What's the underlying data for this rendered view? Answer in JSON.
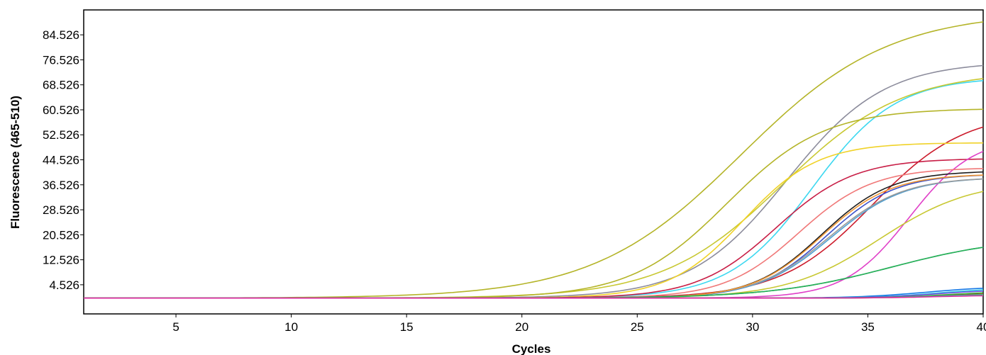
{
  "chart_data": {
    "type": "line",
    "title": "",
    "xlabel": "Cycles",
    "ylabel": "Fluorescence (465-510)",
    "xlim": [
      1,
      40
    ],
    "ylim": [
      -4.8,
      92.5
    ],
    "xticks": [
      "5",
      "10",
      "15",
      "20",
      "25",
      "30",
      "35",
      "40"
    ],
    "yticks": [
      "4.526",
      "12.526",
      "20.526",
      "28.526",
      "36.526",
      "44.526",
      "52.526",
      "60.526",
      "68.526",
      "76.526",
      "84.526"
    ],
    "grid": false,
    "legend": "none",
    "series": [
      {
        "color": "#b4b428",
        "midpoint": 29.5,
        "slope": 3.2,
        "plateau": 92
      },
      {
        "color": "#8c8c9c",
        "midpoint": 31.5,
        "slope": 2.1,
        "plateau": 76
      },
      {
        "color": "#3cd8f0",
        "midpoint": 32.6,
        "slope": 1.8,
        "plateau": 71
      },
      {
        "color": "#c8c832",
        "midpoint": 31.3,
        "slope": 2.6,
        "plateau": 73
      },
      {
        "color": "#b4b428",
        "midpoint": 28.9,
        "slope": 2.1,
        "plateau": 61
      },
      {
        "color": "#cc1c2c",
        "midpoint": 35.2,
        "slope": 2.0,
        "plateau": 60
      },
      {
        "color": "#f0d228",
        "midpoint": 29.6,
        "slope": 1.6,
        "plateau": 50
      },
      {
        "color": "#c81e46",
        "midpoint": 31.0,
        "slope": 1.7,
        "plateau": 45
      },
      {
        "color": "#e040c8",
        "midpoint": 36.8,
        "slope": 1.4,
        "plateau": 52
      },
      {
        "color": "#f07878",
        "midpoint": 32.0,
        "slope": 1.6,
        "plateau": 42
      },
      {
        "color": "#1e1e1e",
        "midpoint": 33.0,
        "slope": 1.5,
        "plateau": 41
      },
      {
        "color": "#3c50c8",
        "midpoint": 33.2,
        "slope": 1.5,
        "plateau": 40
      },
      {
        "color": "#50a0d2",
        "midpoint": 33.4,
        "slope": 1.6,
        "plateau": 39
      },
      {
        "color": "#9a9a9a",
        "midpoint": 33.3,
        "slope": 1.6,
        "plateau": 39
      },
      {
        "color": "#f09632",
        "midpoint": 33.0,
        "slope": 1.5,
        "plateau": 40
      },
      {
        "color": "#c8c832",
        "midpoint": 35.5,
        "slope": 2.0,
        "plateau": 38
      },
      {
        "color": "#287ac8",
        "midpoint": 36.0,
        "slope": 2.6,
        "plateau": 20
      },
      {
        "color": "#28b450",
        "midpoint": 36.0,
        "slope": 2.6,
        "plateau": 20
      },
      {
        "color": "#1478e6",
        "midpoint": 37.5,
        "slope": 1.5,
        "plateau": 4
      },
      {
        "color": "#28c8e6",
        "midpoint": 38.0,
        "slope": 1.4,
        "plateau": 3.5
      },
      {
        "color": "#7850dc",
        "midpoint": 38.0,
        "slope": 1.4,
        "plateau": 3
      },
      {
        "color": "#28b428",
        "midpoint": 38.5,
        "slope": 1.4,
        "plateau": 2.5
      },
      {
        "color": "#c81e1e",
        "midpoint": 38.5,
        "slope": 1.4,
        "plateau": 2
      },
      {
        "color": "#e6c828",
        "midpoint": 38.5,
        "slope": 1.4,
        "plateau": 1.5
      },
      {
        "color": "#32c8a0",
        "midpoint": 38.0,
        "slope": 1.4,
        "plateau": 1.6
      },
      {
        "color": "#dc28a0",
        "midpoint": 38.0,
        "slope": 1.4,
        "plateau": 1.2
      }
    ]
  }
}
